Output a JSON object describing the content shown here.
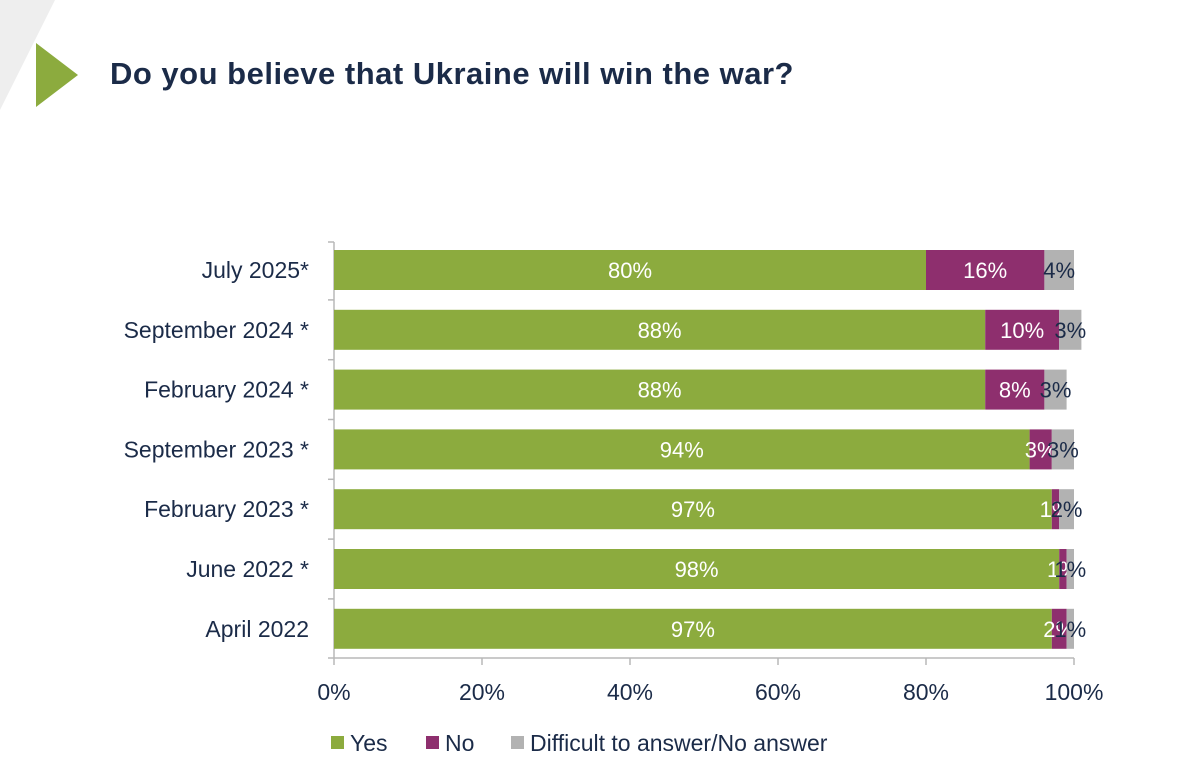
{
  "title": "Do you believe that Ukraine will win the war?",
  "colors": {
    "yes": "#8cab3e",
    "no": "#8e2f6e",
    "dk": "#b2b2b2",
    "title": "#1b2b48",
    "axis": "#b8b8b8",
    "accent_triangle": "#8cab3e",
    "corner_shade": "#eeeeee"
  },
  "chart_data": {
    "type": "bar",
    "orientation": "horizontal",
    "stacked": true,
    "title": "Do you believe that Ukraine will win the war?",
    "categories": [
      "July 2025*",
      "September 2024 *",
      "February 2024 *",
      "September 2023 *",
      "February 2023 *",
      "June 2022 *",
      "April 2022"
    ],
    "series": [
      {
        "name": "Yes",
        "key": "yes",
        "values": [
          80,
          88,
          88,
          94,
          97,
          98,
          97
        ]
      },
      {
        "name": "No",
        "key": "no",
        "values": [
          16,
          10,
          8,
          3,
          1,
          1,
          2
        ]
      },
      {
        "name": "Difficult to answer/No answer",
        "key": "dk",
        "values": [
          4,
          3,
          3,
          3,
          2,
          1,
          1
        ]
      }
    ],
    "xlim": [
      0,
      100
    ],
    "xticks": [
      0,
      20,
      40,
      60,
      80,
      100
    ],
    "tick_suffix": "%",
    "value_suffix": "%",
    "legend_position": "bottom",
    "grid": false
  }
}
